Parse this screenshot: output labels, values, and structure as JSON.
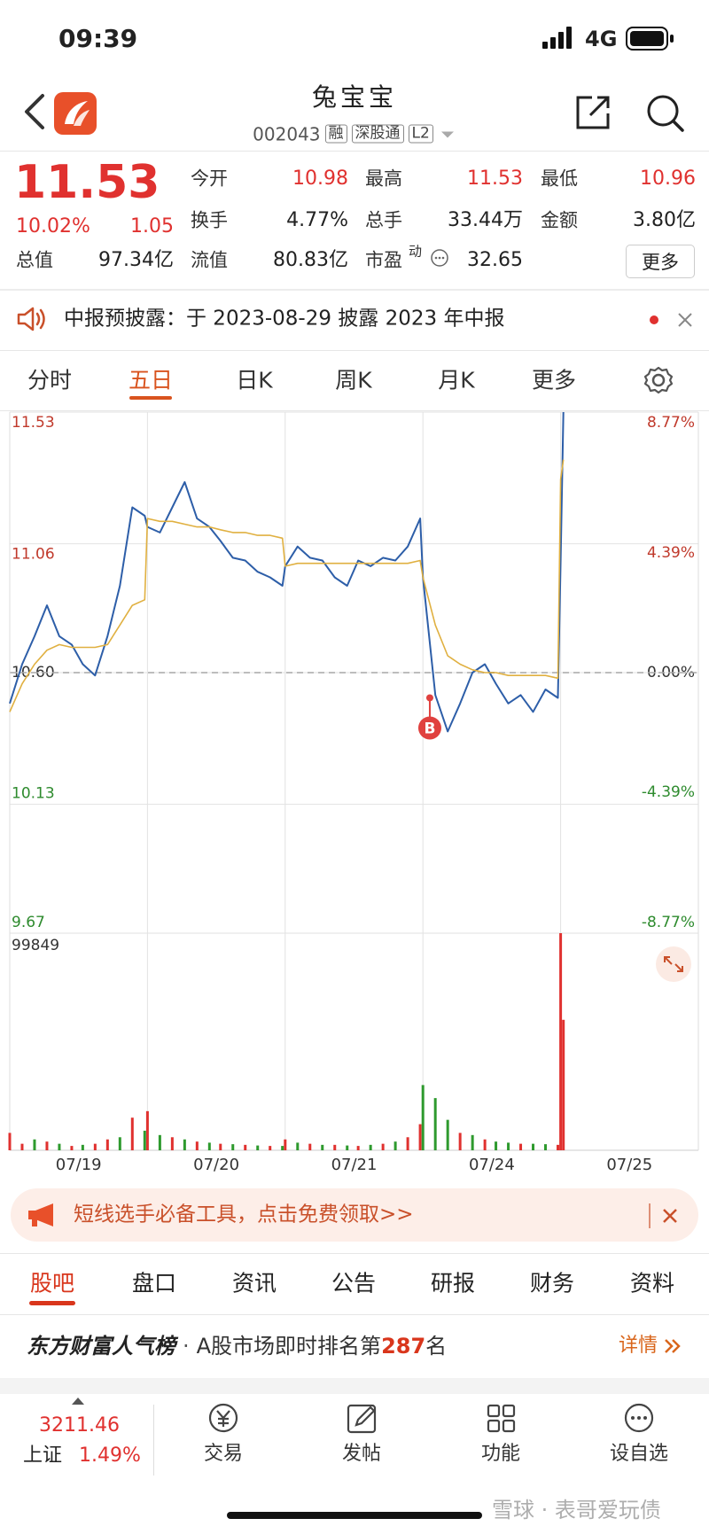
{
  "status_bar": {
    "time": "09:39",
    "network": "4G"
  },
  "header": {
    "title": "兔宝宝",
    "code": "002043",
    "tags": [
      "融",
      "深股通",
      "L2"
    ]
  },
  "quote": {
    "price": "11.53",
    "change_pct": "10.02%",
    "change": "1.05",
    "fields": [
      {
        "label": "今开",
        "value": "10.98"
      },
      {
        "label": "最高",
        "value": "11.53"
      },
      {
        "label": "最低",
        "value": "10.96"
      },
      {
        "label": "换手",
        "value": "4.77%"
      },
      {
        "label": "总手",
        "value": "33.44万"
      },
      {
        "label": "金额",
        "value": "3.80亿"
      },
      {
        "label": "总值",
        "value": "97.34亿"
      },
      {
        "label": "流值",
        "value": "80.83亿"
      },
      {
        "label": "市盈",
        "value": "32.65"
      }
    ],
    "pe_mark": "动",
    "more": "更多"
  },
  "notice": "中报预披露：于 2023-08-29 披露 2023 年中报",
  "chart_tabs": [
    "分时",
    "五日",
    "日K",
    "周K",
    "月K",
    "更多"
  ],
  "active_chart_tab": 1,
  "chart_data": [
    {
      "type": "line",
      "x": [
        0,
        0.09,
        0.18,
        0.27,
        0.36,
        0.45,
        0.53,
        0.62,
        0.71,
        0.8,
        0.89,
        0.98,
        1,
        1.09,
        1.18,
        1.27,
        1.36,
        1.45,
        1.53,
        1.62,
        1.71,
        1.8,
        1.89,
        1.98,
        2,
        2.09,
        2.18,
        2.27,
        2.36,
        2.45,
        2.53,
        2.62,
        2.71,
        2.8,
        2.89,
        2.98,
        3,
        3.09,
        3.18,
        3.27,
        3.36,
        3.45,
        3.53,
        3.62,
        3.71,
        3.8,
        3.89,
        3.98,
        4,
        4.02
      ],
      "xlim": [
        0,
        5
      ],
      "xticks": [
        {
          "value": 0.5,
          "label": "07/19"
        },
        {
          "value": 1.5,
          "label": "07/20"
        },
        {
          "value": 2.5,
          "label": "07/21"
        },
        {
          "value": 3.5,
          "label": "07/24"
        },
        {
          "value": 4.5,
          "label": "07/25"
        }
      ],
      "ylim": [
        9.67,
        11.53
      ],
      "yticks": [
        11.53,
        11.06,
        {
          "value": 10.6,
          "label": "10.60"
        },
        10.13,
        9.67
      ],
      "y2lim": [
        -8.77,
        8.77
      ],
      "y2ticks": [
        {
          "value": 8.77,
          "label": "8.77%"
        },
        {
          "value": 4.39,
          "label": "4.39%"
        },
        {
          "value": 0,
          "label": "0.00%"
        },
        {
          "value": -4.39,
          "label": "-4.39%"
        },
        {
          "value": -8.77,
          "label": "-8.77%"
        }
      ],
      "grid": true,
      "series": [
        {
          "color": "#2d5ea8",
          "values": [
            10.49,
            10.63,
            10.73,
            10.84,
            10.73,
            10.7,
            10.63,
            10.59,
            10.73,
            10.91,
            11.19,
            11.16,
            11.12,
            11.1,
            11.19,
            11.28,
            11.15,
            11.12,
            11.07,
            11.01,
            11.0,
            10.96,
            10.94,
            10.91,
            10.98,
            11.05,
            11.01,
            11.0,
            10.94,
            10.91,
            11.0,
            10.98,
            11.01,
            11.0,
            11.05,
            11.15,
            10.94,
            10.52,
            10.39,
            10.49,
            10.6,
            10.63,
            10.56,
            10.49,
            10.52,
            10.46,
            10.54,
            10.51,
            11.0,
            11.53
          ]
        },
        {
          "color": "#e0b040",
          "values": [
            10.46,
            10.56,
            10.63,
            10.68,
            10.7,
            10.69,
            10.69,
            10.69,
            10.7,
            10.77,
            10.84,
            10.86,
            11.15,
            11.14,
            11.14,
            11.13,
            11.12,
            11.12,
            11.11,
            11.1,
            11.1,
            11.09,
            11.09,
            11.08,
            10.98,
            10.99,
            10.99,
            10.99,
            10.99,
            10.99,
            10.99,
            10.99,
            10.99,
            10.99,
            10.99,
            11.0,
            10.94,
            10.77,
            10.66,
            10.63,
            10.61,
            10.6,
            10.6,
            10.59,
            10.59,
            10.59,
            10.59,
            10.58,
            11.29,
            11.36
          ]
        }
      ],
      "annotations": [
        {
          "x": 3.05,
          "y": 10.51,
          "label": "B",
          "color": "#e0413f"
        }
      ]
    },
    {
      "type": "bar",
      "x": [
        0,
        0.09,
        0.18,
        0.27,
        0.36,
        0.45,
        0.53,
        0.62,
        0.71,
        0.8,
        0.89,
        0.98,
        1,
        1.09,
        1.18,
        1.27,
        1.36,
        1.45,
        1.53,
        1.62,
        1.71,
        1.8,
        1.89,
        1.98,
        2,
        2.09,
        2.18,
        2.27,
        2.36,
        2.45,
        2.53,
        2.62,
        2.71,
        2.8,
        2.89,
        2.98,
        3,
        3.09,
        3.18,
        3.27,
        3.36,
        3.45,
        3.53,
        3.62,
        3.71,
        3.8,
        3.89,
        3.98,
        4,
        4.02
      ],
      "xlim": [
        0,
        5
      ],
      "ylim": [
        0,
        99849
      ],
      "yticks": [
        99849
      ],
      "series": [
        {
          "color": "#e0312f",
          "values": [
            8000,
            3000,
            null,
            4000,
            null,
            2000,
            null,
            3000,
            5000,
            null,
            15000,
            null,
            18000,
            null,
            6000,
            null,
            4000,
            null,
            3000,
            null,
            2500,
            null,
            2000,
            null,
            5000,
            null,
            3000,
            null,
            2500,
            null,
            2000,
            null,
            3000,
            null,
            6000,
            12000,
            null,
            null,
            null,
            8000,
            null,
            5000,
            null,
            null,
            3000,
            null,
            null,
            2500,
            99849,
            60000
          ]
        },
        {
          "color": "#2e9a2e",
          "values": [
            null,
            null,
            5000,
            null,
            3000,
            null,
            2500,
            null,
            null,
            6000,
            null,
            9000,
            null,
            7000,
            null,
            5000,
            null,
            3500,
            null,
            2800,
            null,
            2200,
            null,
            2000,
            null,
            3500,
            null,
            2500,
            null,
            2200,
            null,
            2500,
            null,
            4000,
            null,
            null,
            30000,
            24000,
            14000,
            null,
            7000,
            null,
            4000,
            3500,
            null,
            3000,
            2800,
            null,
            null,
            null
          ]
        }
      ]
    }
  ],
  "promo": "短线选手必备工具，点击免费领取>>",
  "section_tabs": [
    "股吧",
    "盘口",
    "资讯",
    "公告",
    "研报",
    "财务",
    "资料"
  ],
  "active_section_tab": 0,
  "ranking": {
    "brand": "东方财富人气榜",
    "separator": "·",
    "text": "A股市场即时排名第",
    "rank": "287",
    "suffix": "名",
    "link": "详情"
  },
  "bottom_nav": {
    "index_value": "3211.46",
    "index_name": "上证",
    "index_change": "1.49%",
    "items": [
      "交易",
      "发帖",
      "功能",
      "设自选"
    ]
  },
  "watermark": "雪球 · 表哥爱玩债"
}
